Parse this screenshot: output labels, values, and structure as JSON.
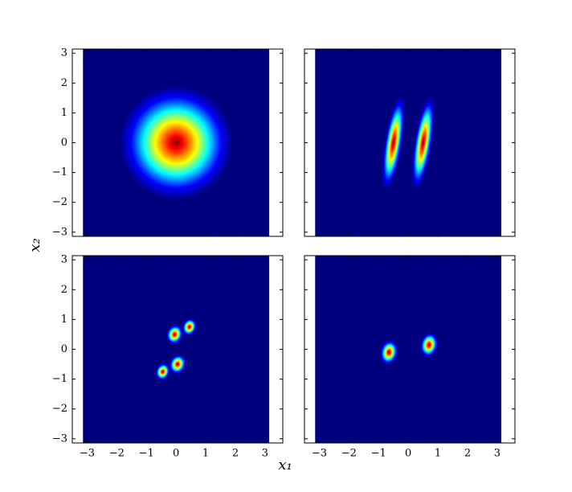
{
  "figure": {
    "xlabel": "x₁",
    "ylabel": "x₂"
  },
  "chart_data": [
    {
      "type": "heatmap",
      "xlim": [
        -3.5,
        3.6
      ],
      "ylim": [
        -3.14,
        3.14
      ],
      "extent": [
        -3.14,
        3.14
      ],
      "xticks": [
        -3,
        -2,
        -1,
        0,
        1,
        2,
        3
      ],
      "yticks": [
        {
          "value": -3,
          "label": "−3"
        },
        {
          "value": -2,
          "label": "−2"
        },
        {
          "value": -1,
          "label": "−1"
        },
        0,
        1,
        2,
        3
      ],
      "blobs": [
        {
          "x": 0,
          "y": 0,
          "rx": 1.9,
          "ry": 1.9,
          "angle": 0
        }
      ]
    },
    {
      "type": "heatmap",
      "xlim": [
        -3.5,
        3.6
      ],
      "ylim": [
        -3.14,
        3.14
      ],
      "extent": [
        -3.14,
        3.14
      ],
      "xticks": [
        -3,
        -2,
        -1,
        0,
        1,
        2,
        3
      ],
      "yticks": [
        -3,
        -2,
        -1,
        0,
        1,
        2,
        3
      ],
      "blobs": [
        {
          "x": -0.5,
          "y": 0,
          "rx": 0.3,
          "ry": 1.6,
          "angle": 9
        },
        {
          "x": 0.5,
          "y": 0,
          "rx": 0.3,
          "ry": 1.6,
          "angle": 9
        }
      ]
    },
    {
      "type": "heatmap",
      "xlim": [
        -3.5,
        3.6
      ],
      "ylim": [
        -3.14,
        3.14
      ],
      "extent": [
        -3.14,
        3.14
      ],
      "xticks": [
        {
          "value": -3,
          "label": "−3"
        },
        {
          "value": -2,
          "label": "−2"
        },
        {
          "value": -1,
          "label": "−1"
        },
        0,
        1,
        2,
        3
      ],
      "yticks": [
        {
          "value": -3,
          "label": "−3"
        },
        {
          "value": -2,
          "label": "−2"
        },
        {
          "value": -1,
          "label": "−1"
        },
        0,
        1,
        2,
        3
      ],
      "blobs": [
        {
          "x": -0.05,
          "y": 0.5,
          "rx": 0.28,
          "ry": 0.34,
          "angle": 20
        },
        {
          "x": 0.45,
          "y": 0.75,
          "rx": 0.24,
          "ry": 0.3,
          "angle": 20
        },
        {
          "x": 0.05,
          "y": -0.5,
          "rx": 0.28,
          "ry": 0.34,
          "angle": 20
        },
        {
          "x": -0.45,
          "y": -0.75,
          "rx": 0.24,
          "ry": 0.3,
          "angle": 20
        }
      ]
    },
    {
      "type": "heatmap",
      "xlim": [
        -3.5,
        3.6
      ],
      "ylim": [
        -3.14,
        3.14
      ],
      "extent": [
        -3.14,
        3.14
      ],
      "xticks": [
        {
          "value": -3,
          "label": "−3"
        },
        {
          "value": -2,
          "label": "−2"
        },
        {
          "value": -1,
          "label": "−1"
        },
        0,
        1,
        2,
        3
      ],
      "yticks": [
        -3,
        -2,
        -1,
        0,
        1,
        2,
        3
      ],
      "blobs": [
        {
          "x": -0.65,
          "y": -0.1,
          "rx": 0.3,
          "ry": 0.42,
          "angle": 12
        },
        {
          "x": 0.7,
          "y": 0.15,
          "rx": 0.3,
          "ry": 0.42,
          "angle": 12
        }
      ]
    }
  ]
}
